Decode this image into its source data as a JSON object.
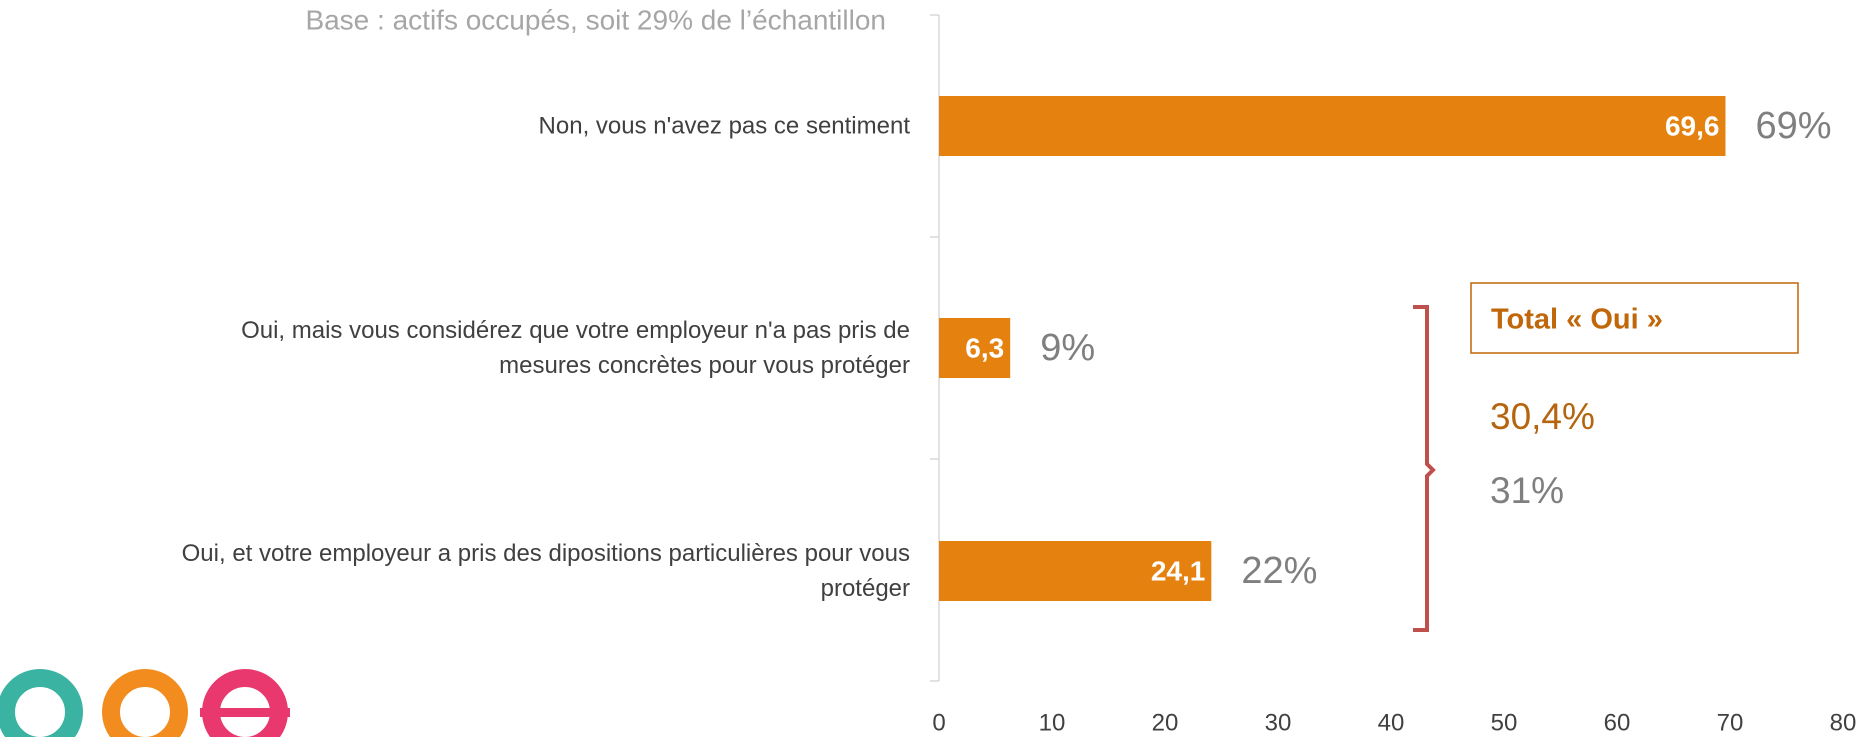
{
  "chart_data": {
    "type": "bar",
    "orientation": "horizontal",
    "subtitle": "Base : actifs occupés, soit 29% de l’échantillon",
    "categories": [
      "Non, vous n'avez pas ce sentiment",
      "Oui, mais vous considérez que votre employeur n'a pas pris de\nmesures concrètes pour vous protéger",
      "Oui, et votre employeur a pris des dipositions particulières pour vous\nprotéger"
    ],
    "values": [
      69.6,
      6.3,
      24.1
    ],
    "value_labels": [
      "69,6",
      "6,3",
      "24,1"
    ],
    "comparison_labels": [
      "69%",
      "9%",
      "22%"
    ],
    "color": "#e5820f",
    "xlim": [
      0,
      80
    ],
    "xticks": [
      0,
      10,
      20,
      30,
      40,
      50,
      60,
      70,
      80
    ],
    "annotation": {
      "title": "Total « Oui »",
      "value": "30,4%",
      "comparison": "31%"
    }
  }
}
